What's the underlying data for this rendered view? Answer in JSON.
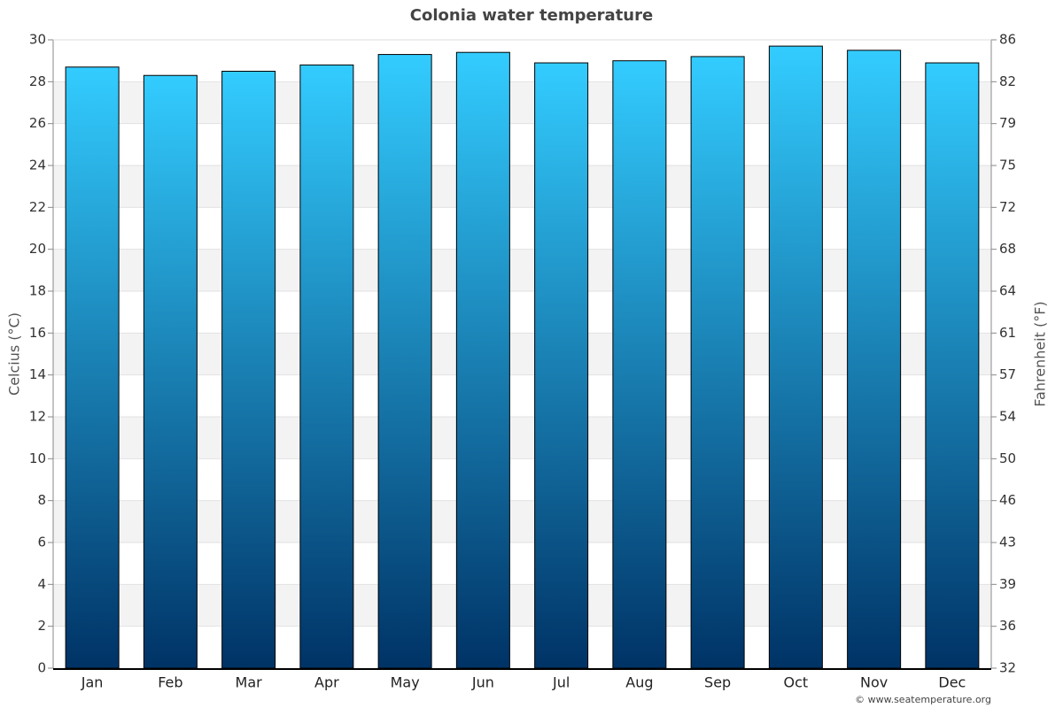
{
  "chart_data": {
    "type": "bar",
    "title": "Colonia water temperature",
    "y_label": "Celcius (°C)",
    "y2_label": "Fahrenheit (°F)",
    "credit": "© www.seatemperature.org",
    "categories": [
      "Jan",
      "Feb",
      "Mar",
      "Apr",
      "May",
      "Jun",
      "Jul",
      "Aug",
      "Sep",
      "Oct",
      "Nov",
      "Dec"
    ],
    "values": [
      28.7,
      28.3,
      28.5,
      28.8,
      29.3,
      29.4,
      28.9,
      29.0,
      29.2,
      29.7,
      29.5,
      28.9
    ],
    "color_top": "#33ccff",
    "color_bottom": "#003366",
    "ylim": [
      0,
      30
    ],
    "yticks": [
      0,
      2,
      4,
      6,
      8,
      10,
      12,
      14,
      16,
      18,
      20,
      22,
      24,
      26,
      28,
      30
    ],
    "y2lim": [
      32,
      86
    ],
    "y2ticks": [
      32,
      {
        "value": 35.6,
        "label": "36"
      },
      {
        "value": 39.2,
        "label": "39"
      },
      {
        "value": 42.8,
        "label": "43"
      },
      {
        "value": 46.4,
        "label": "46"
      },
      50,
      {
        "value": 53.6,
        "label": "54"
      },
      {
        "value": 57.2,
        "label": "57"
      },
      {
        "value": 60.8,
        "label": "61"
      },
      {
        "value": 64.4,
        "label": "64"
      },
      68,
      {
        "value": 71.6,
        "label": "72"
      },
      {
        "value": 75.2,
        "label": "75"
      },
      {
        "value": 78.8,
        "label": "79"
      },
      {
        "value": 82.4,
        "label": "82"
      },
      86
    ],
    "grid": true
  }
}
